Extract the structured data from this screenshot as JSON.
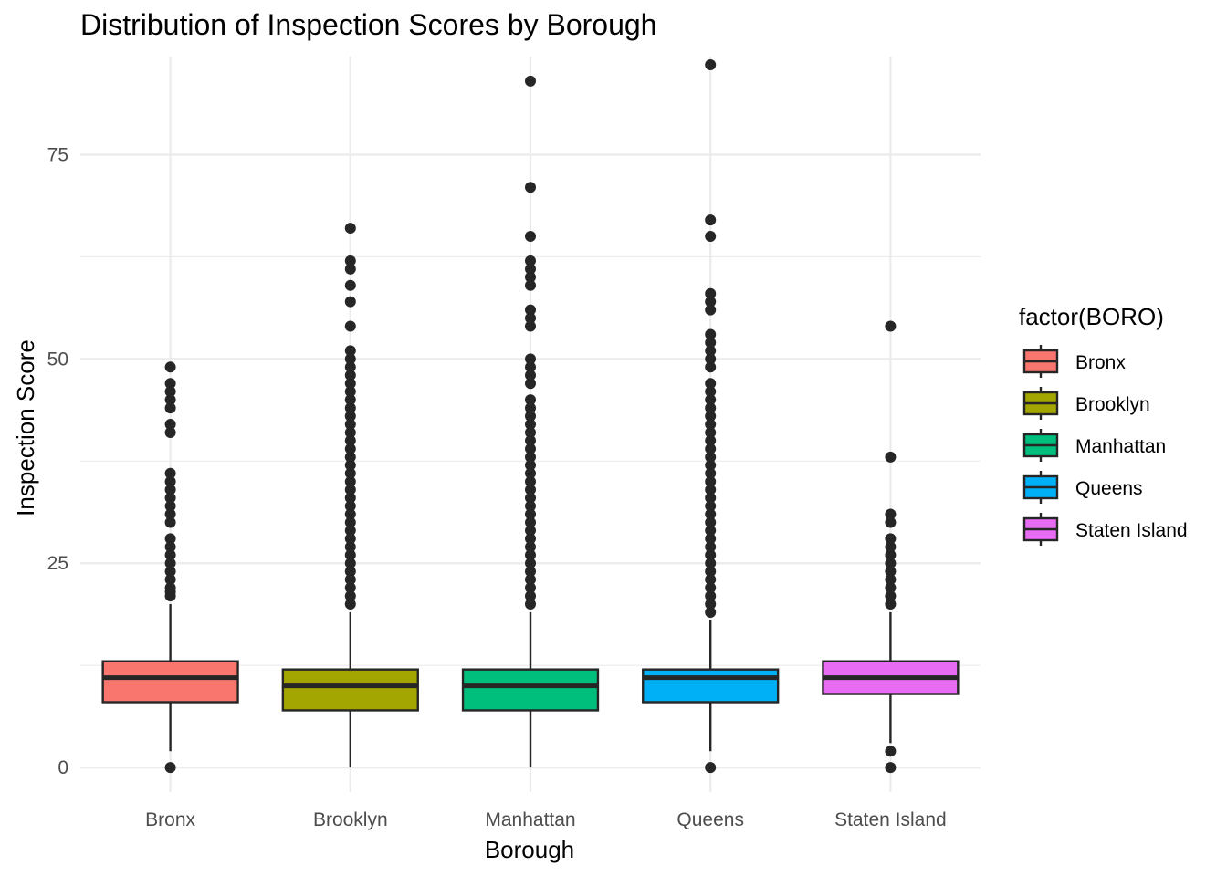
{
  "chart_data": {
    "type": "boxplot",
    "title": "Distribution of Inspection Scores by Borough",
    "xlabel": "Borough",
    "ylabel": "Inspection Score",
    "ylim": [
      -3,
      87
    ],
    "yticks": [
      0,
      25,
      50,
      75
    ],
    "grid": true,
    "legend": {
      "title": "factor(BORO)",
      "placement": "right",
      "entries": [
        "Bronx",
        "Brooklyn",
        "Manhattan",
        "Queens",
        "Staten Island"
      ]
    },
    "categories": [
      "Bronx",
      "Brooklyn",
      "Manhattan",
      "Queens",
      "Staten Island"
    ],
    "series": [
      {
        "category": "Bronx",
        "color": "#F8766D",
        "whisker_low": 2,
        "q1": 8,
        "median": 11,
        "q3": 13,
        "whisker_high": 20,
        "outliers": [
          0,
          21,
          21.5,
          22,
          23,
          24,
          25,
          26,
          27,
          28,
          30,
          31,
          32,
          33,
          34,
          35,
          36,
          41,
          42,
          44,
          45,
          46,
          47,
          49
        ]
      },
      {
        "category": "Brooklyn",
        "color": "#A3A500",
        "whisker_low": 0,
        "q1": 7,
        "median": 10,
        "q3": 12,
        "whisker_high": 19,
        "outliers": [
          20,
          21,
          22,
          23,
          24,
          25,
          26,
          27,
          28,
          29,
          30,
          31,
          32,
          33,
          34,
          35,
          36,
          37,
          38,
          39,
          40,
          41,
          42,
          43,
          44,
          45,
          46,
          47,
          48,
          49,
          50,
          51,
          54,
          57,
          59,
          61,
          62,
          66
        ]
      },
      {
        "category": "Manhattan",
        "color": "#00BF7D",
        "whisker_low": 0,
        "q1": 7,
        "median": 10,
        "q3": 12,
        "whisker_high": 19,
        "outliers": [
          20,
          21,
          22,
          23,
          24,
          25,
          26,
          27,
          28,
          29,
          30,
          31,
          32,
          33,
          34,
          35,
          36,
          37,
          38,
          39,
          40,
          41,
          42,
          43,
          44,
          45,
          47,
          48,
          49,
          50,
          54,
          55,
          56,
          59,
          60,
          61,
          62,
          65,
          71,
          84
        ]
      },
      {
        "category": "Queens",
        "color": "#00B0F6",
        "whisker_low": 2,
        "q1": 8,
        "median": 11,
        "q3": 12,
        "whisker_high": 18,
        "outliers": [
          0,
          19,
          20,
          21,
          22,
          23,
          24,
          25,
          26,
          27,
          28,
          29,
          30,
          31,
          32,
          33,
          34,
          35,
          36,
          37,
          38,
          39,
          40,
          41,
          42,
          43,
          44,
          45,
          46,
          47,
          49,
          50,
          51,
          52,
          53,
          56,
          57,
          58,
          65,
          67,
          86
        ]
      },
      {
        "category": "Staten Island",
        "color": "#E76BF3",
        "whisker_low": 3,
        "q1": 9,
        "median": 11,
        "q3": 13,
        "whisker_high": 19,
        "outliers": [
          0,
          2,
          20,
          21,
          22,
          23,
          24,
          25,
          26,
          27,
          28,
          30,
          31,
          38,
          54
        ]
      }
    ]
  }
}
